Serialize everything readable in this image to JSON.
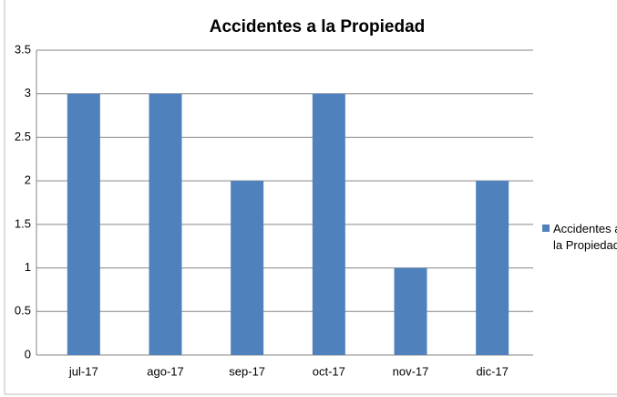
{
  "chart_data": {
    "type": "bar",
    "title": "Accidentes a la Propiedad",
    "categories": [
      "jul-17",
      "ago-17",
      "sep-17",
      "oct-17",
      "nov-17",
      "dic-17"
    ],
    "series": [
      {
        "name": "Accidentes a la Propiedad",
        "color": "#4f81bd",
        "values": [
          3,
          3,
          2,
          3,
          1,
          2
        ]
      }
    ],
    "ylim": [
      0,
      3.5
    ],
    "yticks": [
      0,
      0.5,
      1,
      1.5,
      2,
      2.5,
      3,
      3.5
    ],
    "grid": true,
    "legend": "right"
  }
}
